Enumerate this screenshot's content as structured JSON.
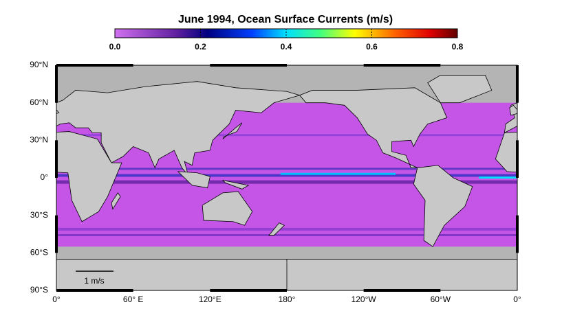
{
  "title": "June 1994, Ocean Surface Currents  (m/s)",
  "colorbar": {
    "lim": [
      0,
      0.8
    ],
    "ticks": [
      {
        "value": 0,
        "label": "0.0"
      },
      0.2,
      0.4,
      0.6,
      0.8
    ]
  },
  "lat_labels": [
    "90°N",
    "60°N",
    "30°N",
    "0°",
    "30°S",
    "60°S",
    "90°S"
  ],
  "lon_labels": [
    "0°",
    "60° E",
    "120°E",
    "180°",
    "120°W",
    "60°W",
    "0°"
  ],
  "scale_label": "1 m/s"
}
